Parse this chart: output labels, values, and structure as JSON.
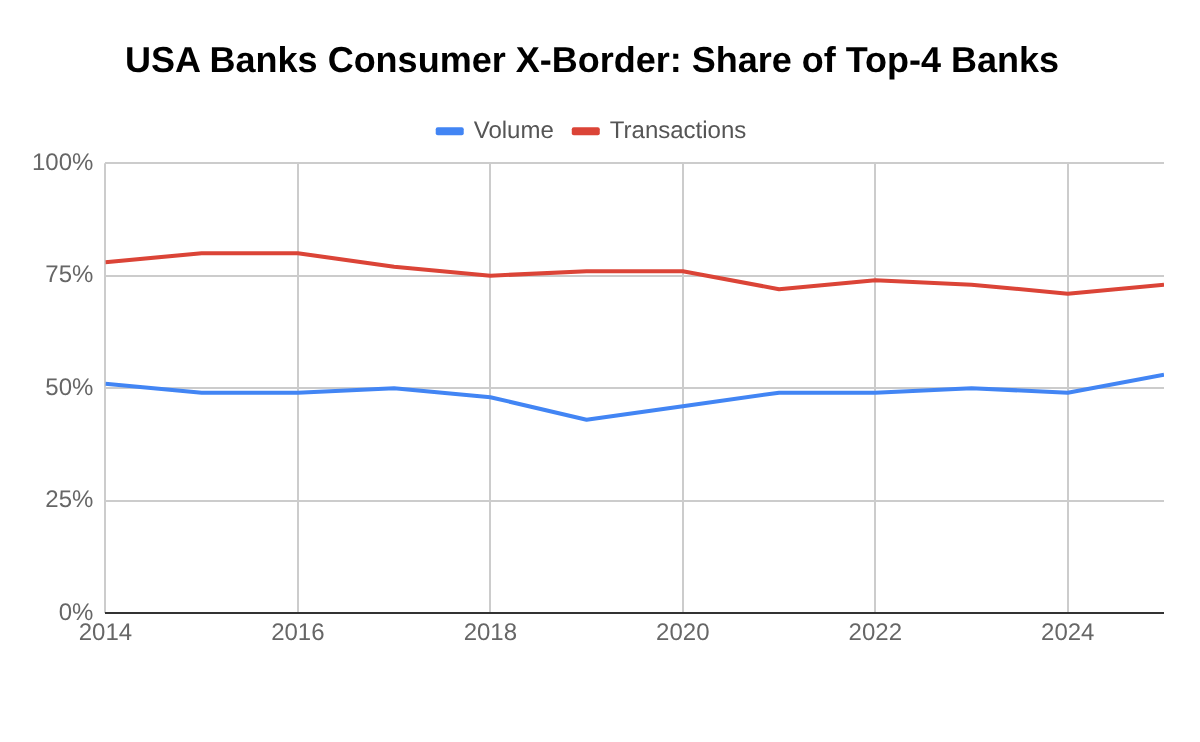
{
  "chart_data": {
    "type": "line",
    "title": "USA Banks Consumer X-Border: Share of Top-4 Banks",
    "x": [
      2014,
      2015,
      2016,
      2017,
      2018,
      2019,
      2020,
      2021,
      2022,
      2023,
      2024,
      2025
    ],
    "series": [
      {
        "name": "Volume",
        "color": "#4285f4",
        "values": [
          51,
          49,
          49,
          50,
          48,
          43,
          46,
          49,
          49,
          50,
          49,
          53
        ]
      },
      {
        "name": "Transactions",
        "color": "#db4437",
        "values": [
          78,
          80,
          80,
          77,
          75,
          76,
          76,
          72,
          74,
          73,
          71,
          73
        ]
      }
    ],
    "xlim": [
      2014,
      2025
    ],
    "xticks": [
      2014,
      2016,
      2018,
      2020,
      2022,
      2024
    ],
    "ylim": [
      0,
      100
    ],
    "yticks": [
      {
        "value": 0,
        "label": "0%"
      },
      {
        "value": 25,
        "label": "25%"
      },
      {
        "value": 50,
        "label": "50%"
      },
      {
        "value": 75,
        "label": "75%"
      },
      {
        "value": 100,
        "label": "100%"
      }
    ],
    "grid": true,
    "legend": "top",
    "marker": "none",
    "line_style": "solid"
  }
}
